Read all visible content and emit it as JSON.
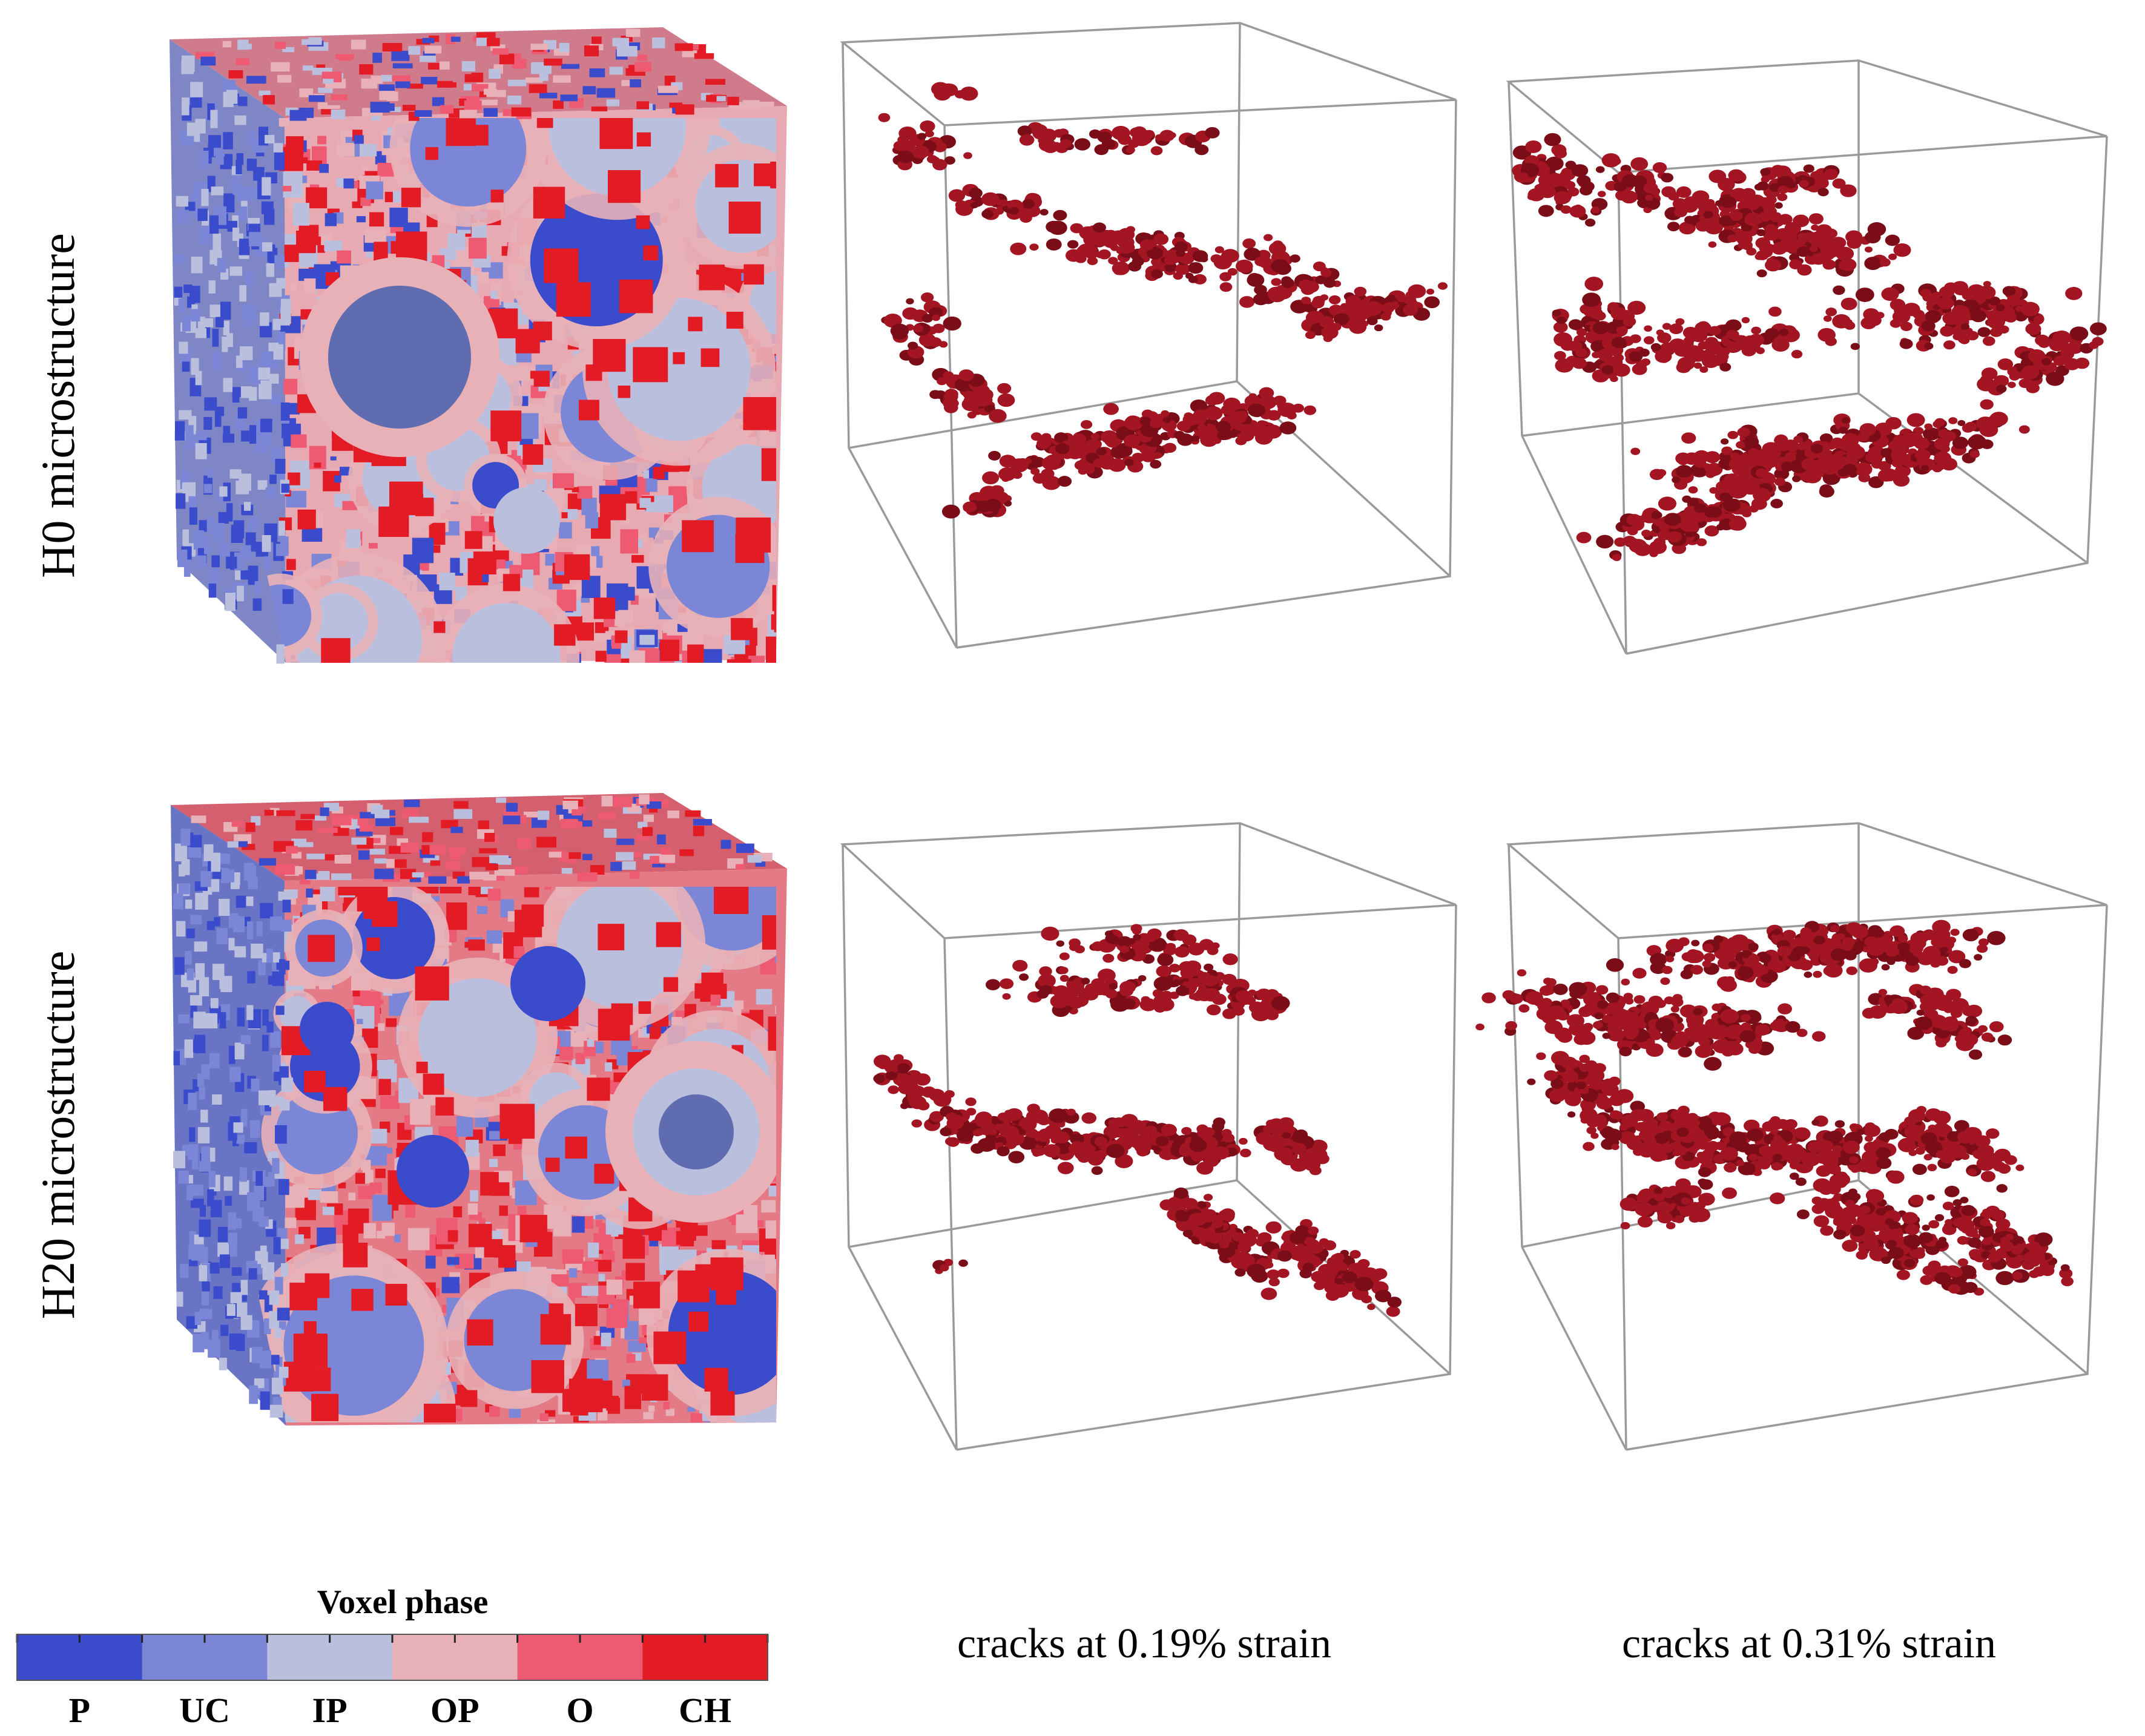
{
  "rows": [
    {
      "label": "H0 microstructure"
    },
    {
      "label": "H20 microstructure"
    }
  ],
  "columns": [
    {
      "caption": ""
    },
    {
      "caption": "cracks at 0.19% strain"
    },
    {
      "caption": "cracks at 0.31% strain"
    }
  ],
  "legend": {
    "title": "Voxel phase",
    "items": [
      {
        "label": "P",
        "color": "#3a4bcc"
      },
      {
        "label": "UC",
        "color": "#7b86d6"
      },
      {
        "label": "IP",
        "color": "#b9bfdd"
      },
      {
        "label": "OP",
        "color": "#e8b1b8"
      },
      {
        "label": "O",
        "color": "#ee5a72"
      },
      {
        "label": "CH",
        "color": "#e21b25"
      }
    ]
  },
  "colors": {
    "crack": "#a31523",
    "crack_dark": "#7a0d18",
    "box_edge": "#9a9a9a"
  }
}
